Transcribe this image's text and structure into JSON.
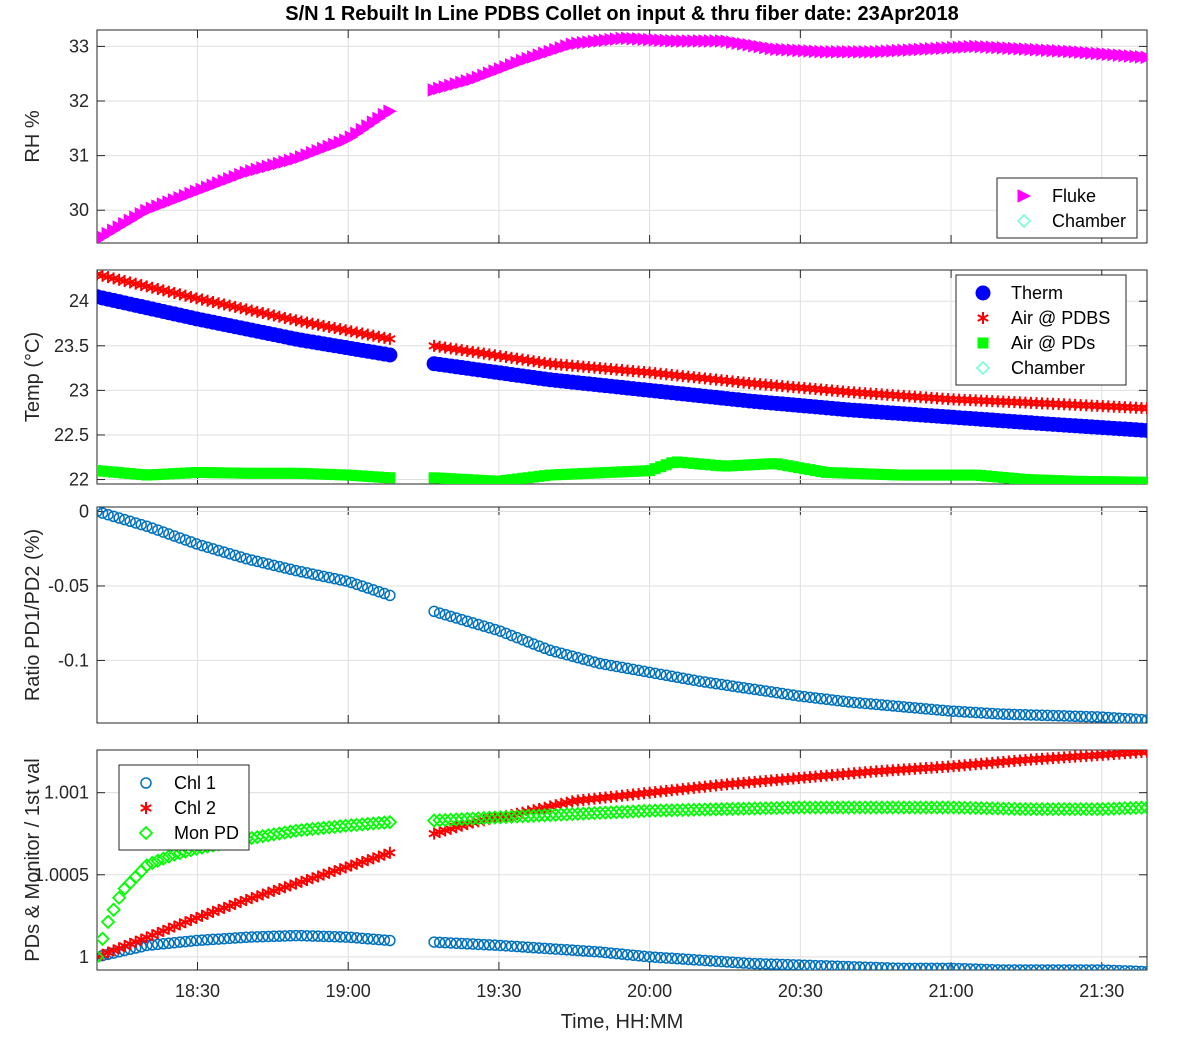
{
  "chart_data": {
    "type": "scatter",
    "title": "S/N 1 Rebuilt In Line PDBS Collet on input & thru fiber date: 23Apr2018",
    "xlabel": "Time, HH:MM",
    "x_range": [
      "18:10",
      "21:39"
    ],
    "x_ticks": [
      "18:30",
      "19:00",
      "19:30",
      "20:00",
      "20:30",
      "21:00",
      "21:30"
    ],
    "data_gap": [
      "19:08",
      "19:17"
    ],
    "grid": true,
    "panels": [
      {
        "ylabel": "RH %",
        "ylim": [
          29.4,
          33.3
        ],
        "y_ticks": [
          30,
          31,
          32,
          33
        ],
        "y_ticklabels": [
          "30",
          "31",
          "32",
          "33"
        ],
        "legend": {
          "position": "bottom-right",
          "entries": [
            "Fluke",
            "Chamber"
          ]
        },
        "series": [
          {
            "name": "Fluke",
            "marker": "triangle-right",
            "color": "#ff00ff",
            "x": [
              "18:10",
              "18:20",
              "18:30",
              "18:40",
              "18:50",
              "19:00",
              "19:08",
              "19:17",
              "19:25",
              "19:35",
              "19:45",
              "19:55",
              "20:05",
              "20:15",
              "20:25",
              "20:35",
              "20:45",
              "20:55",
              "21:05",
              "21:15",
              "21:25",
              "21:39"
            ],
            "y": [
              29.45,
              30.0,
              30.35,
              30.7,
              30.95,
              31.3,
              31.8,
              32.2,
              32.4,
              32.75,
              33.05,
              33.15,
              33.1,
              33.1,
              32.95,
              32.9,
              32.9,
              32.95,
              33.0,
              32.95,
              32.9,
              32.8
            ]
          },
          {
            "name": "Chamber",
            "marker": "diamond-open",
            "color": "#7fffd4",
            "x": [],
            "y": []
          }
        ]
      },
      {
        "ylabel": "Temp (°C)",
        "ylim": [
          21.95,
          24.35
        ],
        "y_ticks": [
          22,
          22.5,
          23,
          23.5,
          24
        ],
        "y_ticklabels": [
          "22",
          "22.5",
          "23",
          "23.5",
          "24"
        ],
        "legend": {
          "position": "top-right",
          "entries": [
            "Therm",
            "Air @ PDBS",
            "Air @ PDs",
            "Chamber"
          ]
        },
        "series": [
          {
            "name": "Therm",
            "marker": "circle-filled",
            "color": "#0000ff",
            "x": [
              "18:10",
              "18:30",
              "18:50",
              "19:08",
              "19:17",
              "19:40",
              "20:00",
              "20:20",
              "20:40",
              "21:00",
              "21:20",
              "21:39"
            ],
            "y": [
              24.05,
              23.8,
              23.57,
              23.4,
              23.3,
              23.12,
              23.0,
              22.88,
              22.78,
              22.7,
              22.62,
              22.55
            ]
          },
          {
            "name": "Air @ PDBS",
            "marker": "asterisk",
            "color": "#ff0000",
            "x": [
              "18:10",
              "18:30",
              "18:50",
              "19:08",
              "19:17",
              "19:40",
              "20:00",
              "20:20",
              "20:40",
              "21:00",
              "21:20",
              "21:39"
            ],
            "y": [
              24.3,
              24.03,
              23.78,
              23.58,
              23.5,
              23.3,
              23.2,
              23.08,
              22.98,
              22.9,
              22.85,
              22.8
            ]
          },
          {
            "name": "Air @ PDs",
            "marker": "square-filled",
            "color": "#00ff00",
            "x": [
              "18:10",
              "18:20",
              "18:30",
              "18:40",
              "18:50",
              "19:00",
              "19:08",
              "19:17",
              "19:30",
              "19:40",
              "20:00",
              "20:05",
              "20:15",
              "20:25",
              "20:35",
              "20:50",
              "21:05",
              "21:15",
              "21:25",
              "21:39"
            ],
            "y": [
              22.1,
              22.05,
              22.08,
              22.07,
              22.07,
              22.05,
              22.02,
              22.02,
              21.98,
              22.05,
              22.1,
              22.2,
              22.15,
              22.18,
              22.08,
              22.05,
              22.05,
              22.0,
              21.98,
              21.97
            ]
          },
          {
            "name": "Chamber",
            "marker": "diamond-open",
            "color": "#7fffd4",
            "x": [],
            "y": []
          }
        ]
      },
      {
        "ylabel": "Ratio PD1/PD2 (%)",
        "ylim": [
          -0.142,
          0.003
        ],
        "y_ticks": [
          0,
          -0.05,
          -0.1
        ],
        "y_ticklabels": [
          "0",
          "-0.05",
          "-0.1"
        ],
        "series": [
          {
            "name": "",
            "marker": "circle-open",
            "color": "#0072bd",
            "x": [
              "18:10",
              "18:20",
              "18:30",
              "18:40",
              "18:50",
              "19:00",
              "19:08",
              "19:17",
              "19:30",
              "19:40",
              "19:50",
              "20:00",
              "20:10",
              "20:20",
              "20:30",
              "20:40",
              "20:50",
              "21:00",
              "21:10",
              "21:20",
              "21:30",
              "21:39"
            ],
            "y": [
              0.0,
              -0.01,
              -0.022,
              -0.032,
              -0.04,
              -0.047,
              -0.056,
              -0.067,
              -0.08,
              -0.093,
              -0.102,
              -0.108,
              -0.114,
              -0.119,
              -0.124,
              -0.128,
              -0.131,
              -0.134,
              -0.136,
              -0.137,
              -0.138,
              -0.14
            ]
          }
        ]
      },
      {
        "ylabel": "PDs & Monitor / 1st val",
        "ylim": [
          0.99992,
          1.00126
        ],
        "y_ticks": [
          1.0,
          1.0005,
          1.001
        ],
        "y_ticklabels": [
          "1",
          "1.0005",
          "1.001"
        ],
        "legend": {
          "position": "top-left",
          "entries": [
            "Chl 1",
            "Chl 2",
            "Mon PD"
          ]
        },
        "series": [
          {
            "name": "Chl 1",
            "marker": "circle-open",
            "color": "#0072bd",
            "x": [
              "18:10",
              "18:20",
              "18:30",
              "18:40",
              "18:50",
              "19:00",
              "19:08",
              "19:17",
              "19:30",
              "19:40",
              "19:50",
              "20:00",
              "20:10",
              "20:20",
              "20:30",
              "20:40",
              "20:50",
              "21:00",
              "21:10",
              "21:20",
              "21:30",
              "21:39"
            ],
            "y": [
              1.0,
              1.00007,
              1.0001,
              1.00012,
              1.00013,
              1.00012,
              1.0001,
              1.00009,
              1.00007,
              1.00005,
              1.00003,
              1.0,
              0.99998,
              0.99996,
              0.99995,
              0.99994,
              0.99993,
              0.99993,
              0.99992,
              0.99992,
              0.99992,
              0.99991
            ]
          },
          {
            "name": "Chl 2",
            "marker": "asterisk",
            "color": "#ff0000",
            "x": [
              "18:10",
              "18:20",
              "18:30",
              "18:40",
              "18:50",
              "19:00",
              "19:08",
              "19:17",
              "19:25",
              "19:35",
              "19:45",
              "20:00",
              "20:15",
              "20:30",
              "20:45",
              "21:00",
              "21:15",
              "21:30",
              "21:39"
            ],
            "y": [
              1.0,
              1.00012,
              1.00024,
              1.00035,
              1.00045,
              1.00055,
              1.00063,
              1.00075,
              1.00082,
              1.00088,
              1.00095,
              1.001,
              1.00105,
              1.00109,
              1.00113,
              1.00116,
              1.0012,
              1.00123,
              1.00125
            ]
          },
          {
            "name": "Mon PD",
            "marker": "diamond-open",
            "color": "#00ff00",
            "x": [
              "18:10",
              "18:12",
              "18:15",
              "18:20",
              "18:25",
              "18:30",
              "18:40",
              "18:50",
              "19:00",
              "19:08",
              "19:17",
              "19:30",
              "19:45",
              "20:00",
              "20:15",
              "20:30",
              "20:45",
              "21:00",
              "21:15",
              "21:30",
              "21:39"
            ],
            "y": [
              1.0,
              1.0002,
              1.0004,
              1.00056,
              1.00062,
              1.00066,
              1.00072,
              1.00077,
              1.0008,
              1.00082,
              1.00083,
              1.00085,
              1.00087,
              1.00089,
              1.0009,
              1.00091,
              1.00091,
              1.00091,
              1.0009,
              1.0009,
              1.00091
            ]
          }
        ]
      }
    ]
  }
}
